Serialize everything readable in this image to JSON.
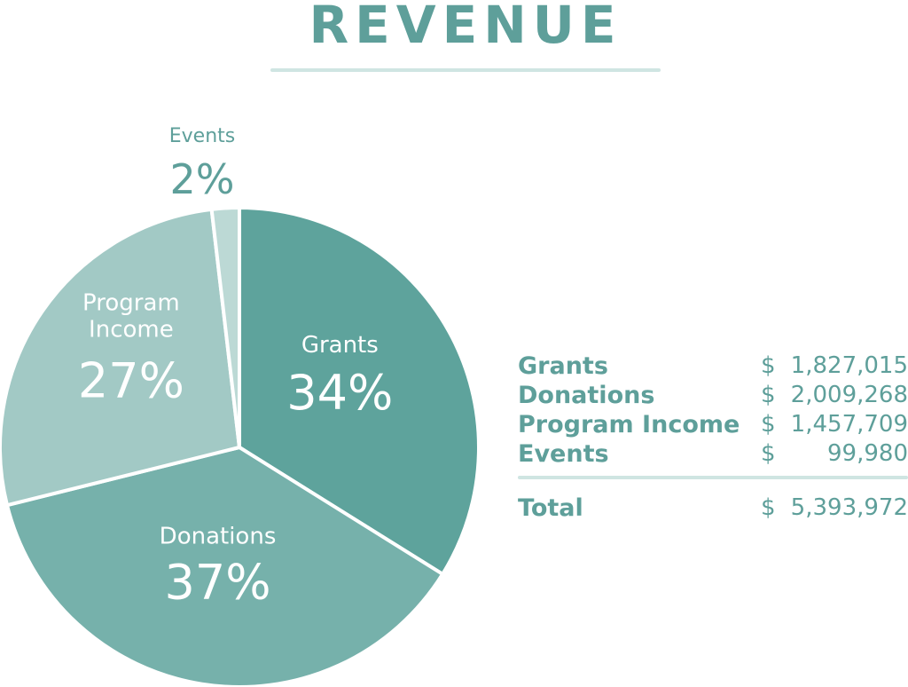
{
  "title": "REVENUE",
  "chart_data": {
    "type": "pie",
    "title": "REVENUE",
    "slices": [
      {
        "label": "Grants",
        "percent_label": "34%",
        "value": 1827015,
        "color": "#5ea39c"
      },
      {
        "label": "Donations",
        "percent_label": "37%",
        "value": 2009268,
        "color": "#76b1ab"
      },
      {
        "label": "Program Income",
        "label_lines": [
          "Program",
          "Income"
        ],
        "percent_label": "27%",
        "value": 1457709,
        "color": "#a2c9c5"
      },
      {
        "label": "Events",
        "percent_label": "2%",
        "value": 99980,
        "color": "#bcd9d5"
      }
    ]
  },
  "table": {
    "rows": [
      {
        "name": "Grants",
        "currency": "$",
        "amount": "1,827,015"
      },
      {
        "name": "Donations",
        "currency": "$",
        "amount": "2,009,268"
      },
      {
        "name": "Program Income",
        "currency": "$",
        "amount": "1,457,709"
      },
      {
        "name": "Events",
        "currency": "$",
        "amount": "99,980"
      }
    ],
    "total": {
      "name": "Total",
      "currency": "$",
      "amount": "5,393,972"
    }
  }
}
